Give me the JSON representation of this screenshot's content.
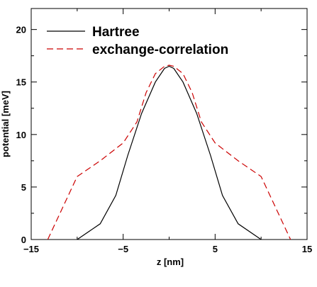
{
  "chart_data": {
    "type": "line",
    "xlabel": "z [nm]",
    "ylabel": "potential [meV]",
    "xlim": [
      -15,
      15
    ],
    "ylim": [
      0,
      22
    ],
    "xticks": [
      -15,
      -5,
      5,
      15
    ],
    "yticks": [
      0,
      5,
      10,
      15,
      20
    ],
    "legend_position": "top-left",
    "grid": false,
    "series": [
      {
        "name": "Hartree",
        "color": "#000000",
        "dash": "solid",
        "x": [
          -10,
          -7.5,
          -5.8,
          -4.5,
          -3,
          -1.5,
          -0.5,
          0,
          0.5,
          1.5,
          3,
          4.5,
          5.8,
          7.5,
          10
        ],
        "y": [
          0,
          1.5,
          4.2,
          8,
          12,
          15,
          16.3,
          16.5,
          16.3,
          15,
          12,
          8,
          4.2,
          1.5,
          0
        ]
      },
      {
        "name": "exchange-correlation",
        "color": "#cc0000",
        "dash": "dashed",
        "x": [
          -13.2,
          -10,
          -7.5,
          -5,
          -3.5,
          -2.5,
          -1.5,
          -0.5,
          0,
          0.5,
          1.5,
          2.5,
          3.5,
          5,
          7.5,
          10,
          13.2
        ],
        "y": [
          0,
          6,
          7.5,
          9.2,
          11.2,
          14,
          15.8,
          16.5,
          16.6,
          16.5,
          15.8,
          14,
          11.2,
          9.2,
          7.5,
          6,
          0
        ]
      }
    ]
  }
}
